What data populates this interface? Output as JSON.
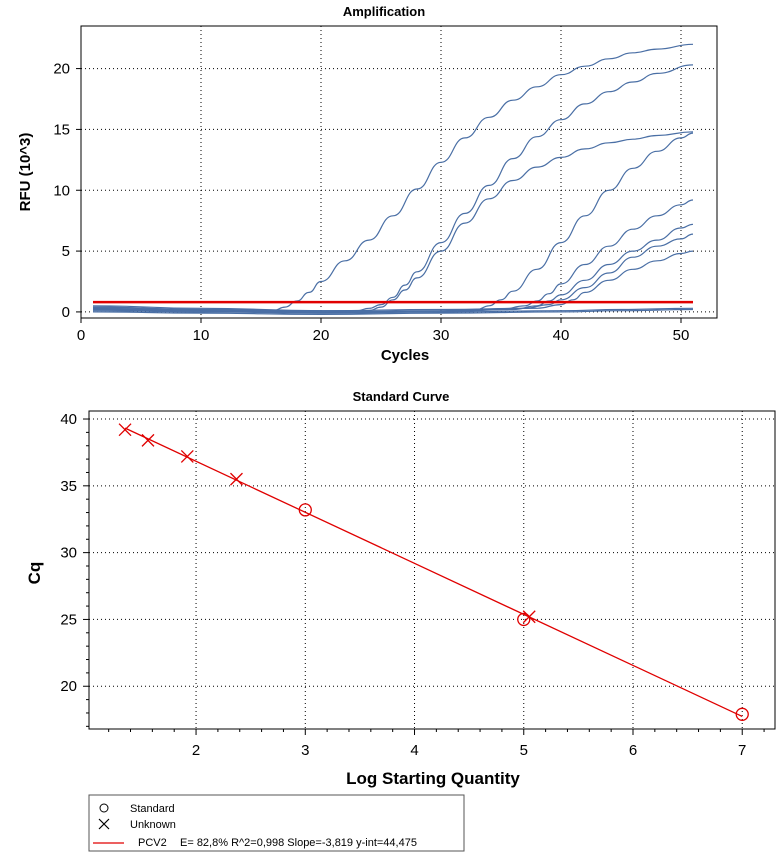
{
  "chart_data": [
    {
      "type": "line",
      "title": "Amplification",
      "xlabel": "Cycles",
      "ylabel": "RFU (10^3)",
      "xlim": [
        0,
        53
      ],
      "ylim": [
        -0.5,
        23.5
      ],
      "xticks": [
        0,
        10,
        20,
        30,
        40,
        50
      ],
      "yticks": [
        0,
        5,
        10,
        15,
        20
      ],
      "grid": true,
      "threshold": 0.8,
      "colors": {
        "curves": "#4a6fa5",
        "threshold": "#e00000"
      },
      "series": [
        {
          "values": [
            [
              1,
              0.3
            ],
            [
              5,
              0.2
            ],
            [
              10,
              0.1
            ],
            [
              15,
              0.0
            ],
            [
              16,
              0.1
            ],
            [
              17,
              0.4
            ],
            [
              18,
              0.9
            ],
            [
              19,
              1.6
            ],
            [
              20,
              2.5
            ],
            [
              22,
              4.2
            ],
            [
              24,
              5.9
            ],
            [
              26,
              7.9
            ],
            [
              28,
              10.1
            ],
            [
              30,
              12.3
            ],
            [
              32,
              14.3
            ],
            [
              34,
              16.0
            ],
            [
              36,
              17.4
            ],
            [
              38,
              18.5
            ],
            [
              40,
              19.5
            ],
            [
              42,
              20.2
            ],
            [
              44,
              20.8
            ],
            [
              46,
              21.3
            ],
            [
              48,
              21.6
            ],
            [
              51,
              22.0
            ]
          ]
        },
        {
          "values": [
            [
              1,
              0.4
            ],
            [
              10,
              0.2
            ],
            [
              20,
              0.0
            ],
            [
              23,
              0.1
            ],
            [
              24,
              0.3
            ],
            [
              25,
              0.6
            ],
            [
              26,
              1.2
            ],
            [
              27,
              2.2
            ],
            [
              28,
              3.3
            ],
            [
              30,
              5.7
            ],
            [
              32,
              8.1
            ],
            [
              34,
              10.4
            ],
            [
              36,
              12.6
            ],
            [
              38,
              14.4
            ],
            [
              40,
              15.8
            ],
            [
              42,
              17.1
            ],
            [
              44,
              18.1
            ],
            [
              46,
              18.9
            ],
            [
              48,
              19.6
            ],
            [
              51,
              20.3
            ]
          ]
        },
        {
          "values": [
            [
              1,
              0.5
            ],
            [
              10,
              0.3
            ],
            [
              20,
              0.1
            ],
            [
              24,
              0.1
            ],
            [
              25,
              0.4
            ],
            [
              26,
              1.0
            ],
            [
              27,
              1.8
            ],
            [
              28,
              2.8
            ],
            [
              30,
              5.0
            ],
            [
              32,
              7.3
            ],
            [
              34,
              9.3
            ],
            [
              36,
              10.8
            ],
            [
              38,
              11.9
            ],
            [
              40,
              12.7
            ],
            [
              42,
              13.4
            ],
            [
              44,
              13.9
            ],
            [
              46,
              14.2
            ],
            [
              48,
              14.5
            ],
            [
              51,
              14.8
            ]
          ]
        },
        {
          "values": [
            [
              1,
              0.3
            ],
            [
              10,
              0.1
            ],
            [
              20,
              0.0
            ],
            [
              30,
              0.0
            ],
            [
              33,
              0.2
            ],
            [
              34,
              0.5
            ],
            [
              35,
              1.0
            ],
            [
              36,
              1.7
            ],
            [
              38,
              3.5
            ],
            [
              40,
              5.7
            ],
            [
              42,
              7.9
            ],
            [
              44,
              10.0
            ],
            [
              46,
              11.8
            ],
            [
              48,
              13.2
            ],
            [
              50,
              14.3
            ],
            [
              51,
              14.7
            ]
          ]
        },
        {
          "values": [
            [
              1,
              0.2
            ],
            [
              10,
              0.1
            ],
            [
              20,
              -0.1
            ],
            [
              30,
              0.0
            ],
            [
              35,
              0.2
            ],
            [
              37,
              0.5
            ],
            [
              38,
              0.9
            ],
            [
              39,
              1.5
            ],
            [
              40,
              2.3
            ],
            [
              42,
              3.9
            ],
            [
              44,
              5.4
            ],
            [
              46,
              6.8
            ],
            [
              48,
              7.9
            ],
            [
              50,
              8.8
            ],
            [
              51,
              9.2
            ]
          ]
        },
        {
          "values": [
            [
              1,
              0.3
            ],
            [
              10,
              0.1
            ],
            [
              20,
              0.0
            ],
            [
              30,
              0.0
            ],
            [
              36,
              0.2
            ],
            [
              38,
              0.5
            ],
            [
              39,
              0.9
            ],
            [
              40,
              1.4
            ],
            [
              42,
              2.6
            ],
            [
              44,
              3.9
            ],
            [
              46,
              5.0
            ],
            [
              48,
              5.9
            ],
            [
              50,
              6.9
            ],
            [
              51,
              7.2
            ]
          ]
        },
        {
          "values": [
            [
              1,
              0.2
            ],
            [
              10,
              0.0
            ],
            [
              20,
              0.0
            ],
            [
              30,
              0.1
            ],
            [
              37,
              0.3
            ],
            [
              39,
              0.6
            ],
            [
              40,
              1.0
            ],
            [
              42,
              2.0
            ],
            [
              44,
              3.2
            ],
            [
              46,
              4.5
            ],
            [
              48,
              5.4
            ],
            [
              50,
              6.0
            ],
            [
              51,
              6.4
            ]
          ]
        },
        {
          "values": [
            [
              1,
              0.4
            ],
            [
              10,
              0.2
            ],
            [
              20,
              0.1
            ],
            [
              30,
              0.2
            ],
            [
              38,
              0.3
            ],
            [
              40,
              0.6
            ],
            [
              41,
              1.0
            ],
            [
              42,
              1.6
            ],
            [
              44,
              2.6
            ],
            [
              46,
              3.5
            ],
            [
              48,
              4.2
            ],
            [
              50,
              4.8
            ],
            [
              51,
              5.0
            ]
          ]
        },
        {
          "values": [
            [
              1,
              0.1
            ],
            [
              10,
              0.0
            ],
            [
              20,
              -0.1
            ],
            [
              30,
              0.0
            ],
            [
              40,
              0.1
            ],
            [
              45,
              0.2
            ],
            [
              51,
              0.3
            ]
          ]
        },
        {
          "values": [
            [
              1,
              0.0
            ],
            [
              10,
              -0.1
            ],
            [
              20,
              -0.2
            ],
            [
              30,
              -0.1
            ],
            [
              40,
              0.0
            ],
            [
              45,
              0.1
            ],
            [
              51,
              0.2
            ]
          ]
        }
      ]
    },
    {
      "type": "scatter",
      "title": "Standard Curve",
      "xlabel": "Log Starting Quantity",
      "ylabel": "Cq",
      "xlim": [
        1.02,
        7.3
      ],
      "ylim": [
        16.8,
        40.6
      ],
      "xticks": [
        2,
        3,
        4,
        5,
        6,
        7
      ],
      "yticks": [
        20,
        25,
        30,
        35,
        40
      ],
      "grid": true,
      "colors": {
        "marks": "#e00000"
      },
      "standard": [
        [
          3.0,
          33.2
        ],
        [
          5.0,
          25.0
        ],
        [
          7.0,
          17.9
        ]
      ],
      "unknown": [
        [
          1.35,
          39.2
        ],
        [
          1.56,
          38.4
        ],
        [
          1.92,
          37.2
        ],
        [
          2.37,
          35.5
        ],
        [
          5.05,
          25.2
        ]
      ],
      "fit_line": {
        "x": [
          1.35,
          7.0
        ],
        "y": [
          39.32,
          17.74
        ]
      },
      "legend": {
        "position": "bottom-left",
        "standard_label": "Standard",
        "unknown_label": "Unknown",
        "series_name": "PCV2",
        "series_stats": "E= 82,8% R^2=0,998 Slope=-3,819 y-int=44,475"
      }
    }
  ]
}
